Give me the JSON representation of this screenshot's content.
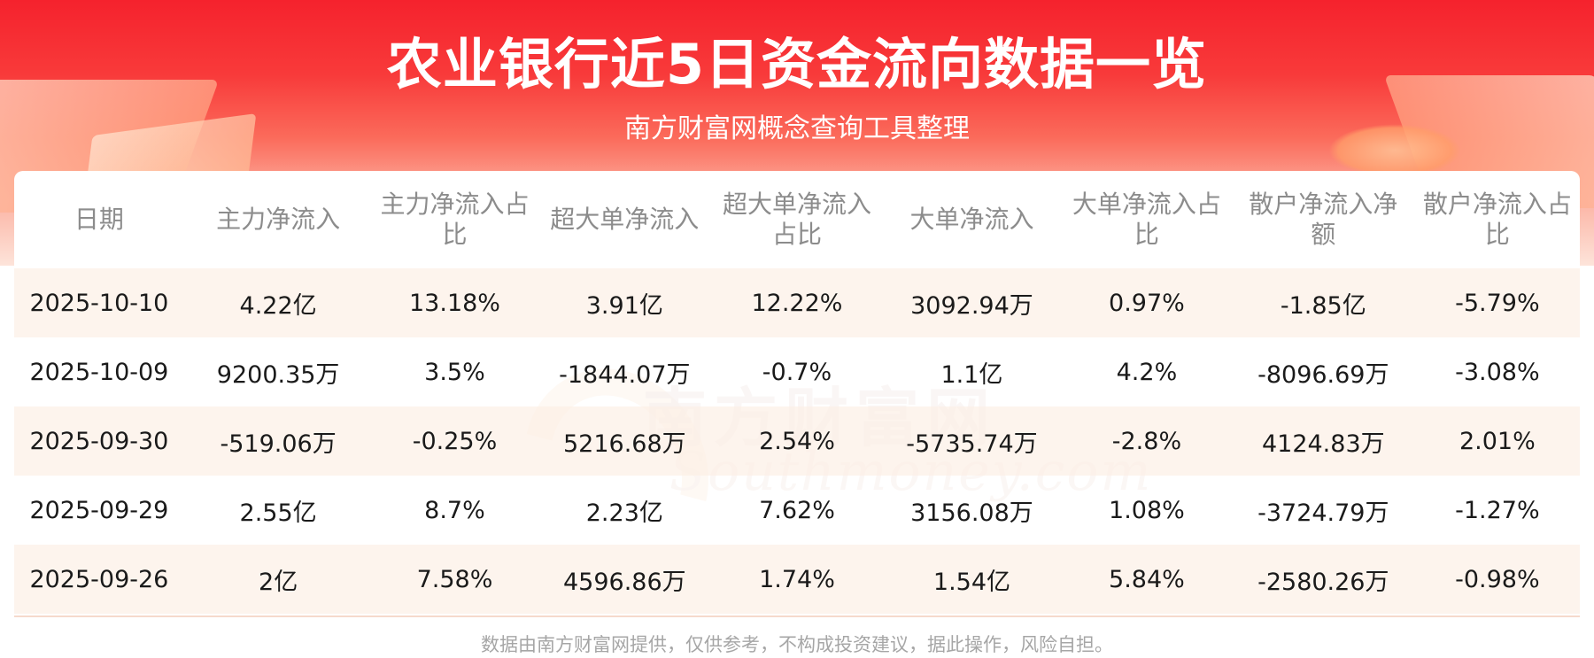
{
  "header": {
    "title": "农业银行近5日资金流向数据一览",
    "subtitle": "南方财富网概念查询工具整理"
  },
  "watermark": {
    "cn": "南方财富网",
    "en": "Southmoney.com"
  },
  "table": {
    "columns": [
      "日期",
      "主力净流入",
      "主力净流入占比",
      "超大单净流入",
      "超大单净流入占比",
      "大单净流入",
      "大单净流入占比",
      "散户净流入净额",
      "散户净流入占比"
    ],
    "rows": [
      [
        "2025-10-10",
        "4.22亿",
        "13.18%",
        "3.91亿",
        "12.22%",
        "3092.94万",
        "0.97%",
        "-1.85亿",
        "-5.79%"
      ],
      [
        "2025-10-09",
        "9200.35万",
        "3.5%",
        "-1844.07万",
        "-0.7%",
        "1.1亿",
        "4.2%",
        "-8096.69万",
        "-3.08%"
      ],
      [
        "2025-09-30",
        "-519.06万",
        "-0.25%",
        "5216.68万",
        "2.54%",
        "-5735.74万",
        "-2.8%",
        "4124.83万",
        "2.01%"
      ],
      [
        "2025-09-29",
        "2.55亿",
        "8.7%",
        "2.23亿",
        "7.62%",
        "3156.08万",
        "1.08%",
        "-3724.79万",
        "-1.27%"
      ],
      [
        "2025-09-26",
        "2亿",
        "7.58%",
        "4596.86万",
        "1.74%",
        "1.54亿",
        "5.84%",
        "-2580.26万",
        "-0.98%"
      ]
    ]
  },
  "footer": {
    "disclaimer": "数据由南方财富网提供，仅供参考，不构成投资建议，据此操作，风险自担。"
  },
  "colors": {
    "header_red": "#f5222d",
    "row_stripe": "#fdf2ea",
    "header_text": "#8c8c8c"
  }
}
